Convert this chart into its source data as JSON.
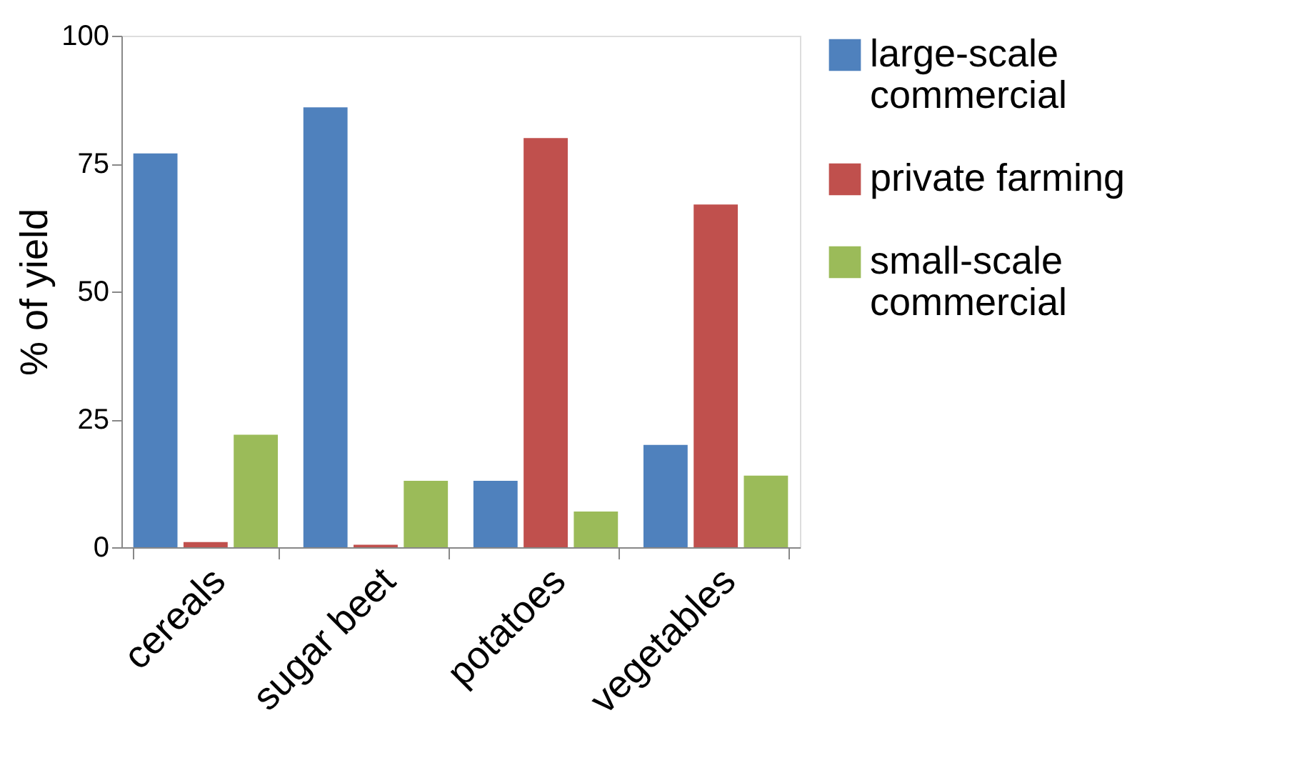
{
  "chart_data": {
    "type": "bar",
    "ylabel": "% of yield",
    "categories": [
      "cereals",
      "sugar beet",
      "potatoes",
      "vegetables"
    ],
    "series": [
      {
        "name": "large-scale commercial",
        "color": "#4f81bd",
        "values": [
          77,
          86,
          13,
          20
        ]
      },
      {
        "name": "private farming",
        "color": "#c0504d",
        "values": [
          1,
          0.5,
          80,
          67
        ]
      },
      {
        "name": "small-scale commercial",
        "color": "#9bbb59",
        "values": [
          22,
          13,
          7,
          14
        ]
      }
    ],
    "ylim": [
      0,
      100
    ],
    "yticks": [
      0,
      25,
      50,
      75,
      100
    ],
    "grid": false,
    "legend": "right"
  }
}
